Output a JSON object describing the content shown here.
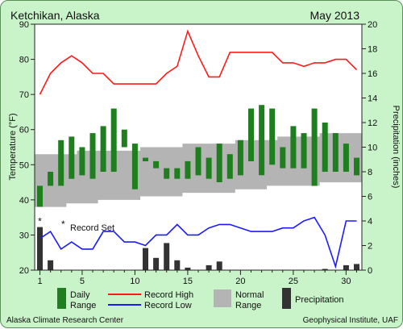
{
  "header": {
    "location": "Ketchikan, Alaska",
    "period": "May 2013"
  },
  "footer": {
    "left": "Alaska Climate Research Center",
    "right": "Geophysical Institute, UAF"
  },
  "legend": {
    "daily_range": "Daily\nRange",
    "record_high": "Record High",
    "record_low": "Record Low",
    "normal_range": "Normal\nRange",
    "precipitation": "Precipitation"
  },
  "record_note": "Record Set",
  "colors": {
    "background": "#c9f3c9",
    "plot_bg": "#ffffff",
    "daily_range": "#1f7f1f",
    "record_high": "#ff1a1a",
    "record_low": "#1a1aff",
    "normal_range": "#b4b4b4",
    "precipitation": "#333333"
  },
  "chart_data": {
    "type": "bar",
    "xlabel": "",
    "ylabel": "Temperature (°F)",
    "y2label": "Precipitation (inches)",
    "xlim": [
      0.5,
      31.5
    ],
    "ylim": [
      20,
      90
    ],
    "y2lim": [
      0,
      20
    ],
    "x_ticks": [
      1,
      5,
      10,
      15,
      20,
      25,
      30
    ],
    "y_ticks": [
      20,
      30,
      40,
      50,
      60,
      70,
      80,
      90
    ],
    "y2_ticks": [
      0,
      2,
      4,
      6,
      8,
      10,
      12,
      14,
      16,
      18,
      20
    ],
    "days": [
      1,
      2,
      3,
      4,
      5,
      6,
      7,
      8,
      9,
      10,
      11,
      12,
      13,
      14,
      15,
      16,
      17,
      18,
      19,
      20,
      21,
      22,
      23,
      24,
      25,
      26,
      27,
      28,
      29,
      30,
      31
    ],
    "series": [
      {
        "name": "Daily Range",
        "kind": "range",
        "low": [
          38,
          44,
          44,
          46,
          47,
          46,
          48,
          48,
          55,
          43,
          51,
          49,
          46,
          46,
          46,
          47,
          46,
          45,
          46,
          47,
          51,
          47,
          50,
          49,
          49,
          49,
          44,
          48,
          48,
          48,
          47
        ],
        "high": [
          44,
          48,
          57,
          58,
          55,
          59,
          61,
          66,
          60,
          56,
          52,
          51,
          49,
          49,
          51,
          55,
          52,
          56,
          53,
          57,
          66,
          67,
          66,
          55,
          61,
          59,
          66,
          62,
          59,
          56,
          52
        ]
      },
      {
        "name": "Record High",
        "kind": "line",
        "values": [
          70,
          76,
          79,
          81,
          79,
          76,
          76,
          73,
          73,
          73,
          73,
          73,
          76,
          78,
          88,
          81,
          75,
          75,
          82,
          82,
          82,
          82,
          82,
          79,
          79,
          78,
          79,
          79,
          80,
          80,
          77
        ]
      },
      {
        "name": "Record Low",
        "kind": "line",
        "values": [
          29,
          31,
          26,
          28,
          26,
          26,
          31,
          31,
          28,
          28,
          27,
          30,
          30,
          33,
          30,
          30,
          32,
          33,
          33,
          32,
          31,
          31,
          31,
          32,
          32,
          34,
          35,
          30,
          21,
          34,
          34
        ]
      },
      {
        "name": "Normal Range",
        "kind": "band",
        "low": [
          38,
          38,
          38,
          39,
          39,
          39,
          40,
          40,
          40,
          40,
          41,
          41,
          41,
          41,
          42,
          42,
          42,
          42,
          42,
          43,
          43,
          43,
          44,
          44,
          44,
          44,
          44,
          45,
          45,
          45,
          45
        ],
        "high": [
          53,
          53,
          53,
          53,
          54,
          54,
          54,
          54,
          54,
          54,
          55,
          55,
          55,
          55,
          56,
          56,
          56,
          56,
          56,
          57,
          57,
          57,
          57,
          58,
          58,
          58,
          58,
          59,
          59,
          59,
          59
        ]
      },
      {
        "name": "Precipitation",
        "kind": "bar",
        "axis": "y2",
        "values": [
          3.5,
          0.8,
          0,
          0,
          0,
          0,
          0,
          0,
          0,
          0,
          1.8,
          1.0,
          2.2,
          0.8,
          0.2,
          0,
          0.4,
          0.7,
          0,
          0,
          0,
          0,
          0,
          0,
          0,
          0,
          0,
          0.1,
          0,
          0.4,
          0.5
        ]
      }
    ],
    "records_set_days": [
      1
    ],
    "grid": false,
    "legend_placement": "bottom"
  }
}
